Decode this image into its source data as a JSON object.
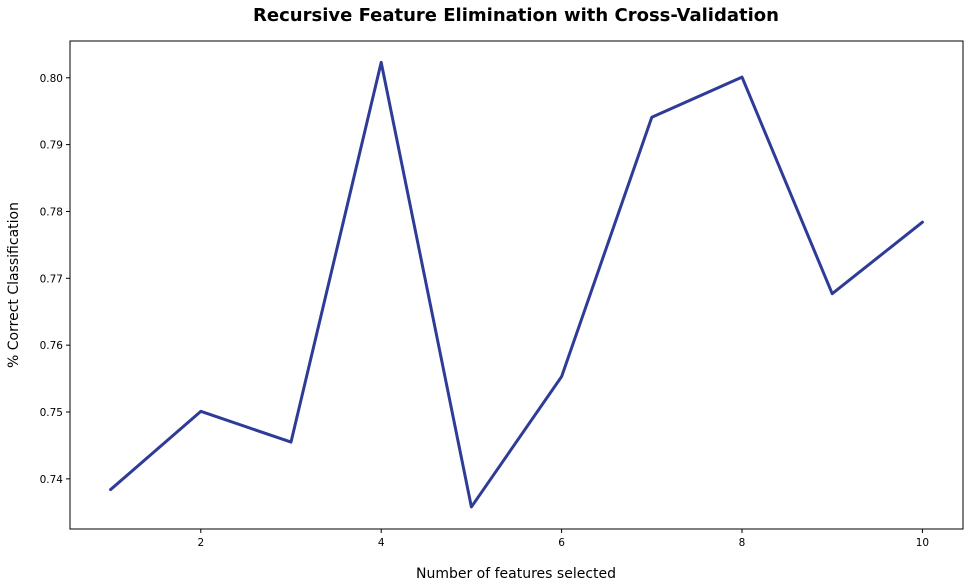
{
  "chart_data": {
    "type": "line",
    "title": "Recursive Feature Elimination with Cross-Validation",
    "xlabel": "Number of features selected",
    "ylabel": "% Correct Classification",
    "x": [
      1,
      2,
      3,
      4,
      5,
      6,
      7,
      8,
      9,
      10
    ],
    "series": [
      {
        "values": [
          0.7384,
          0.7501,
          0.7455,
          0.8023,
          0.7358,
          0.7553,
          0.7941,
          0.8001,
          0.7677,
          0.7784
        ],
        "color": "#2f3c97"
      }
    ],
    "xlim": [
      0.55,
      10.45
    ],
    "ylim": [
      0.7325,
      0.8055
    ],
    "xticks": [
      2,
      4,
      6,
      8,
      10
    ],
    "xtick_labels": [
      "2",
      "4",
      "6",
      "8",
      "10"
    ],
    "yticks": [
      0.74,
      0.75,
      0.76,
      0.77,
      0.78,
      0.79,
      0.8
    ],
    "ytick_labels": [
      "0.74",
      "0.75",
      "0.76",
      "0.77",
      "0.78",
      "0.79",
      "0.80"
    ],
    "grid": false,
    "legend": "none"
  }
}
